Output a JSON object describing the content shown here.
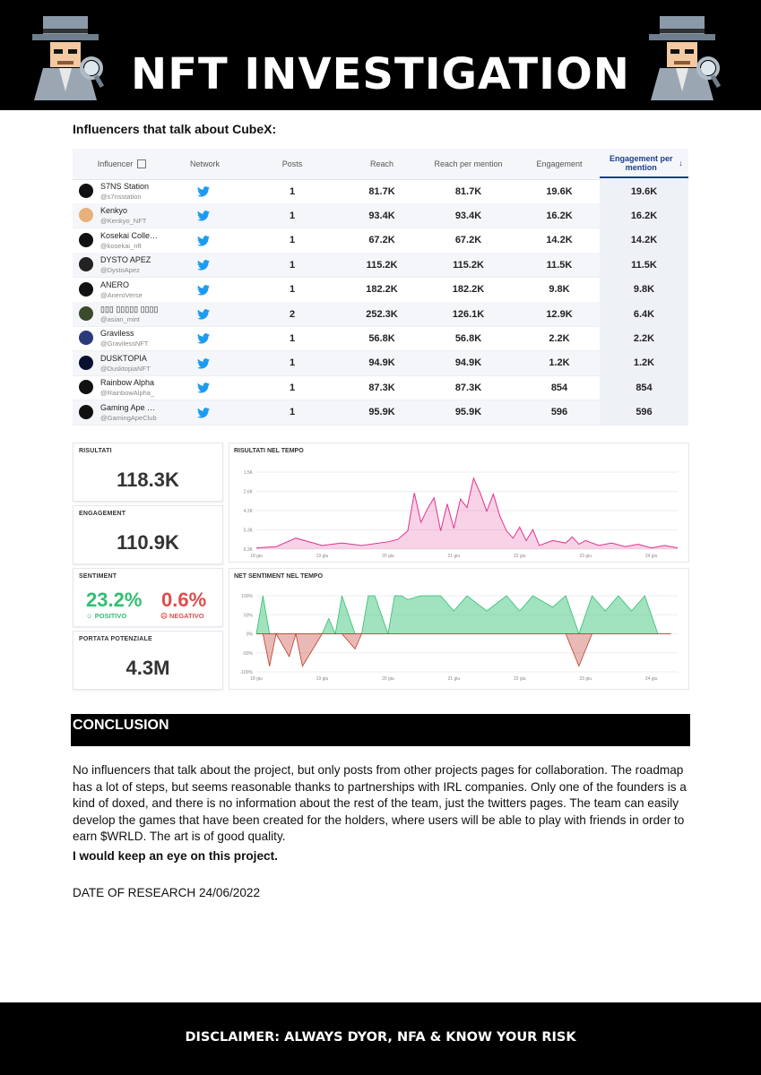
{
  "header": {
    "title": "NFT INVESTIGATION"
  },
  "section_heading": "Influencers that talk about CubeX:",
  "table": {
    "columns": [
      "Influencer",
      "Network",
      "Posts",
      "Reach",
      "Reach per mention",
      "Engagement",
      "Engagement per mention"
    ],
    "rows": [
      {
        "name": "S7NS Station",
        "handle": "@s7nsstation",
        "posts": "1",
        "reach": "81.7K",
        "reach_per_mention": "81.7K",
        "engagement": "19.6K",
        "engagement_per_mention": "19.6K",
        "avatar_color": "#111111"
      },
      {
        "name": "Kenkyo",
        "handle": "@Kenkyo_NFT",
        "posts": "1",
        "reach": "93.4K",
        "reach_per_mention": "93.4K",
        "engagement": "16.2K",
        "engagement_per_mention": "16.2K",
        "avatar_color": "#e8b07a"
      },
      {
        "name": "Kosekai Colle…",
        "handle": "@kosekai_nft",
        "posts": "1",
        "reach": "67.2K",
        "reach_per_mention": "67.2K",
        "engagement": "14.2K",
        "engagement_per_mention": "14.2K",
        "avatar_color": "#111111"
      },
      {
        "name": "DYSTO APEZ",
        "handle": "@DystoApez",
        "posts": "1",
        "reach": "115.2K",
        "reach_per_mention": "115.2K",
        "engagement": "11.5K",
        "engagement_per_mention": "11.5K",
        "avatar_color": "#222222"
      },
      {
        "name": "ANERO",
        "handle": "@AneroVerse",
        "posts": "1",
        "reach": "182.2K",
        "reach_per_mention": "182.2K",
        "engagement": "9.8K",
        "engagement_per_mention": "9.8K",
        "avatar_color": "#111111"
      },
      {
        "name": "▯▯▯ ▯▯▯▯▯ ▯▯▯▯",
        "handle": "@asian_mint",
        "posts": "2",
        "reach": "252.3K",
        "reach_per_mention": "126.1K",
        "engagement": "12.9K",
        "engagement_per_mention": "6.4K",
        "avatar_color": "#3a4a2a"
      },
      {
        "name": "Graviless",
        "handle": "@GravilessNFT",
        "posts": "1",
        "reach": "56.8K",
        "reach_per_mention": "56.8K",
        "engagement": "2.2K",
        "engagement_per_mention": "2.2K",
        "avatar_color": "#2a3a7a"
      },
      {
        "name": "DUSKTOPIA",
        "handle": "@DusktopiaNFT",
        "posts": "1",
        "reach": "94.9K",
        "reach_per_mention": "94.9K",
        "engagement": "1.2K",
        "engagement_per_mention": "1.2K",
        "avatar_color": "#0a1030"
      },
      {
        "name": "Rainbow Alpha",
        "handle": "@RainbowAlpha_",
        "posts": "1",
        "reach": "87.3K",
        "reach_per_mention": "87.3K",
        "engagement": "854",
        "engagement_per_mention": "854",
        "avatar_color": "#111111"
      },
      {
        "name": "Gaming Ape …",
        "handle": "@GamingApeClub",
        "posts": "1",
        "reach": "95.9K",
        "reach_per_mention": "95.9K",
        "engagement": "596",
        "engagement_per_mention": "596",
        "avatar_color": "#111111"
      }
    ]
  },
  "dashboard": {
    "risultati": {
      "label": "RISULTATI",
      "value": "118.3K"
    },
    "engagement": {
      "label": "ENGAGEMENT",
      "value": "110.9K"
    },
    "sentiment": {
      "label": "SENTIMENT",
      "positive": "23.2%",
      "positive_label": "POSITIVO",
      "negative": "0.6%",
      "negative_label": "NEGATIVO"
    },
    "portata": {
      "label": "PORTATA POTENZIALE",
      "value": "4.3M"
    },
    "results_chart_title": "RISULTATI NEL TEMPO",
    "sentiment_chart_title": "NET SENTIMENT NEL TEMPO"
  },
  "chart_data": [
    {
      "type": "area",
      "title": "RISULTATI NEL TEMPO",
      "x_ticks": [
        "18 giu",
        "19 giu",
        "20 giu",
        "21 giu",
        "22 giu",
        "23 giu",
        "24 giu"
      ],
      "y_ticks": [
        "1.5K",
        "2.6K",
        "4.2K",
        "5.3K",
        "6.3K"
      ],
      "ylim": [
        0,
        6300
      ],
      "x": [
        0,
        0.3,
        0.6,
        1,
        1.3,
        1.6,
        2,
        2.15,
        2.3,
        2.4,
        2.5,
        2.6,
        2.7,
        2.8,
        2.9,
        3.0,
        3.1,
        3.2,
        3.3,
        3.4,
        3.5,
        3.6,
        3.7,
        3.8,
        3.9,
        4.0,
        4.1,
        4.2,
        4.3,
        4.5,
        4.7,
        4.8,
        4.9,
        5,
        5.2,
        5.4,
        5.6,
        5.8,
        6,
        6.2,
        6.4
      ],
      "y": [
        100,
        200,
        900,
        300,
        500,
        300,
        600,
        800,
        1500,
        4600,
        2200,
        3300,
        4200,
        1500,
        3700,
        1700,
        4100,
        3400,
        5800,
        4600,
        3100,
        4500,
        2700,
        1500,
        900,
        1800,
        700,
        1600,
        300,
        700,
        500,
        1000,
        400,
        700,
        300,
        500,
        200,
        400,
        100,
        300,
        100
      ],
      "color": "#e0338f"
    },
    {
      "type": "area",
      "title": "NET SENTIMENT NEL TEMPO",
      "x_ticks": [
        "18 giu",
        "19 giu",
        "20 giu",
        "21 giu",
        "22 giu",
        "23 giu",
        "24 giu"
      ],
      "y_ticks": [
        "100%",
        "50%",
        "0%",
        "-50%",
        "-100%"
      ],
      "ylim": [
        -100,
        100
      ],
      "x": [
        0,
        0.1,
        0.2,
        0.3,
        0.5,
        0.6,
        0.7,
        1.0,
        1.1,
        1.2,
        1.3,
        1.5,
        1.6,
        1.7,
        1.8,
        2.0,
        2.1,
        2.2,
        2.3,
        2.5,
        2.8,
        3.0,
        3.2,
        3.5,
        3.8,
        4.0,
        4.2,
        4.5,
        4.7,
        4.9,
        5.1,
        5.3,
        5.5,
        5.7,
        5.9,
        6.1,
        6.3
      ],
      "y": [
        0,
        100,
        -85,
        0,
        -60,
        0,
        -85,
        0,
        40,
        0,
        100,
        -40,
        0,
        100,
        100,
        0,
        100,
        100,
        90,
        100,
        100,
        60,
        100,
        60,
        100,
        60,
        100,
        70,
        100,
        -85,
        100,
        60,
        100,
        60,
        100,
        0,
        0
      ],
      "positive_color": "#2fbf71",
      "negative_color": "#c0392b"
    }
  ],
  "conclusion": {
    "heading": "CONCLUSION",
    "body": "No influencers that talk about the project, but only posts from other projects pages for collaboration. The roadmap has a lot of steps, but seems reasonable thanks to partnerships with IRL companies. Only one of the founders is a kind of doxed, and there is no information about the rest of the team, just the twitters pages. The team can easily develop the games that have been created for the holders, where users will be able to play with friends in order to earn $WRLD. The art is of good quality.",
    "emphasis": "I would keep an eye on this project.",
    "date": "DATE OF RESEARCH 24/06/2022"
  },
  "footer": {
    "disclaimer": "DISCLAIMER: ALWAYS DYOR, NFA & KNOW YOUR RISK"
  },
  "colors": {
    "twitter": "#1d9bf0",
    "positive": "#2fbf71",
    "negative": "#e04b4b",
    "accent": "#1b3f8b"
  }
}
